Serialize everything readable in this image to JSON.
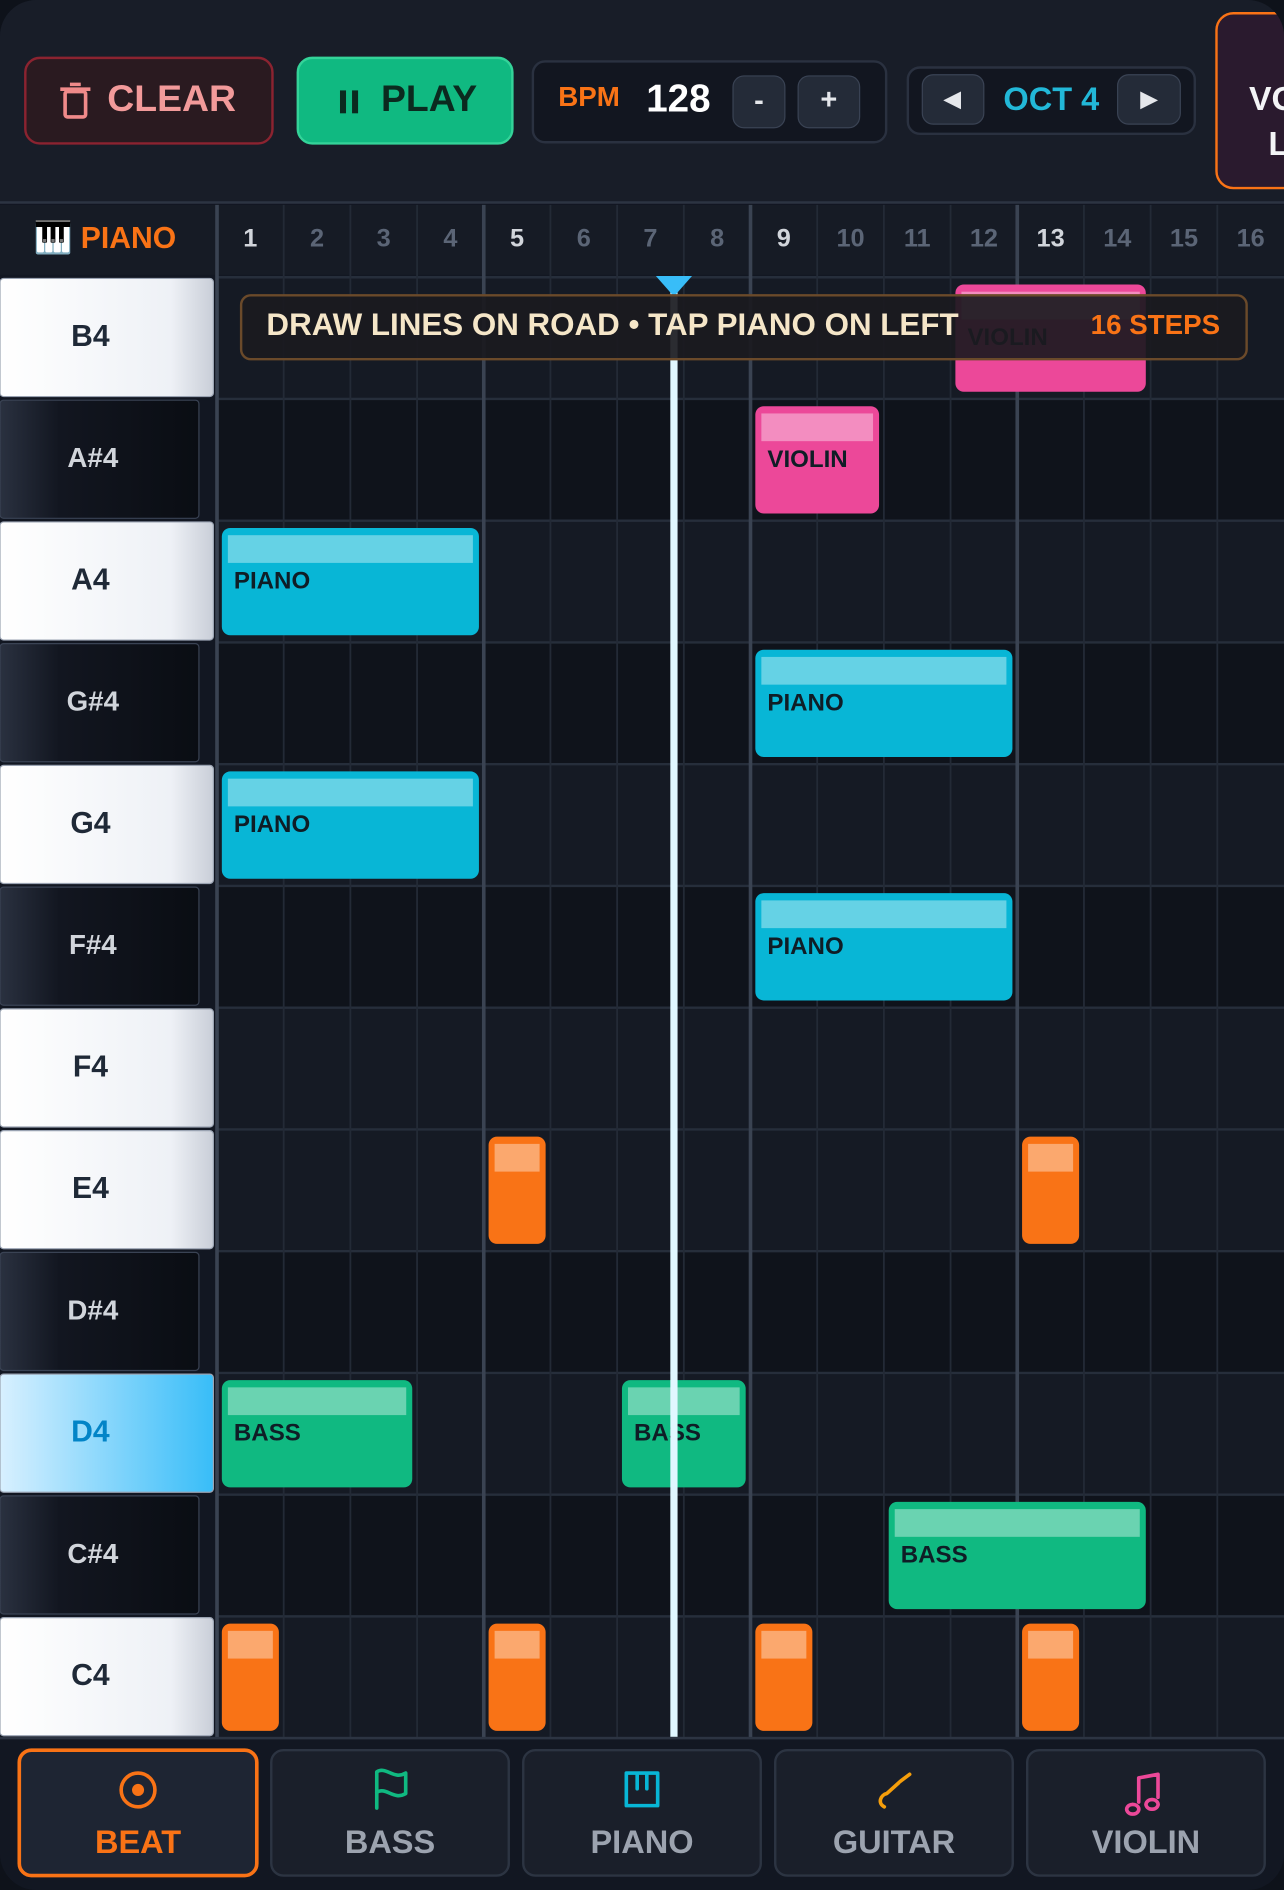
{
  "toolbar": {
    "clear": "CLEAR",
    "play": "PLAY",
    "bpm_label": "BPM",
    "bpm": 128,
    "minus": "-",
    "plus": "+",
    "prev": "◀",
    "octave": "OCT 4",
    "next": "▶",
    "cut_button": [
      "VO",
      "L"
    ]
  },
  "instrument": "PIANO",
  "steps": [
    1,
    2,
    3,
    4,
    5,
    6,
    7,
    8,
    9,
    10,
    11,
    12,
    13,
    14,
    15,
    16
  ],
  "keys": [
    "B4",
    "A#4",
    "A4",
    "G#4",
    "G4",
    "F#4",
    "F4",
    "E4",
    "D#4",
    "D4",
    "C#4",
    "C4"
  ],
  "selected_key": 9,
  "hint": "DRAW LINES ON ROAD • TAP PIANO ON LEFT",
  "step_count": "16 STEPS",
  "colors": {
    "beat": "#f97316",
    "bass": "#10b981",
    "piano": "#08b6d6",
    "violin": "#ec4899"
  },
  "notes": [
    {
      "instrument": "violin",
      "label": "VIOLIN",
      "key": 0,
      "start": 12,
      "length": 3
    },
    {
      "instrument": "violin",
      "label": "VIOLIN",
      "key": 1,
      "start": 9,
      "length": 2
    },
    {
      "instrument": "piano",
      "label": "PIANO",
      "key": 2,
      "start": 1,
      "length": 4
    },
    {
      "instrument": "piano",
      "label": "PIANO",
      "key": 3,
      "start": 9,
      "length": 4
    },
    {
      "instrument": "piano",
      "label": "PIANO",
      "key": 4,
      "start": 1,
      "length": 4
    },
    {
      "instrument": "piano",
      "label": "PIANO",
      "key": 5,
      "start": 9,
      "length": 4
    },
    {
      "instrument": "beat",
      "key": 7,
      "start": 5,
      "length": 1
    },
    {
      "instrument": "beat",
      "key": 7,
      "start": 13,
      "length": 1
    },
    {
      "instrument": "bass",
      "label": "BASS",
      "key": 9,
      "start": 1,
      "length": 3
    },
    {
      "instrument": "bass",
      "label": "BASS",
      "key": 9,
      "start": 7,
      "length": 2
    },
    {
      "instrument": "bass",
      "label": "BASS",
      "key": 10,
      "start": 11,
      "length": 4
    },
    {
      "instrument": "beat",
      "key": 11,
      "start": 1,
      "length": 1
    },
    {
      "instrument": "beat",
      "key": 11,
      "start": 5,
      "length": 1
    },
    {
      "instrument": "beat",
      "key": 11,
      "start": 9,
      "length": 1
    },
    {
      "instrument": "beat",
      "key": 11,
      "start": 13,
      "length": 1
    }
  ],
  "tabs": [
    "BEAT",
    "BASS",
    "PIANO",
    "GUITAR",
    "VIOLIN"
  ],
  "active_tab": 0
}
